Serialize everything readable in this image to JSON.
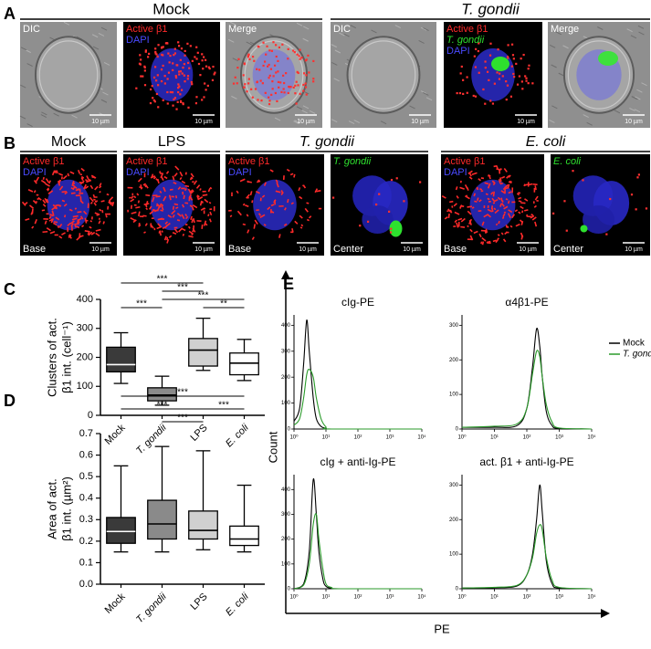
{
  "panel_a": {
    "letter": "A",
    "headers": [
      {
        "text": "Mock",
        "italic": false
      },
      {
        "text": "T. gondii",
        "italic": true
      }
    ],
    "images": [
      {
        "labels": [
          {
            "text": "DIC",
            "color": "#ffffff",
            "italic": false
          }
        ],
        "scale": "10 µm"
      },
      {
        "labels": [
          {
            "text": "Active β1",
            "color": "#ff2a2a",
            "italic": false
          },
          {
            "text": "DAPI",
            "color": "#4a4aff",
            "italic": false
          }
        ],
        "scale": "10 µm"
      },
      {
        "labels": [
          {
            "text": "Merge",
            "color": "#ffffff",
            "italic": false
          }
        ],
        "scale": "10 µm"
      },
      {
        "labels": [
          {
            "text": "DIC",
            "color": "#ffffff",
            "italic": false
          }
        ],
        "scale": "10 µm"
      },
      {
        "labels": [
          {
            "text": "Active β1",
            "color": "#ff2a2a",
            "italic": false
          },
          {
            "text": "T. gondii",
            "color": "#2ee02e",
            "italic": true
          },
          {
            "text": "DAPI",
            "color": "#4a4aff",
            "italic": false
          }
        ],
        "scale": "10 µm"
      },
      {
        "labels": [
          {
            "text": "Merge",
            "color": "#ffffff",
            "italic": false
          }
        ],
        "scale": "10 µm"
      }
    ]
  },
  "panel_b": {
    "letter": "B",
    "headers": [
      {
        "text": "Mock",
        "italic": false
      },
      {
        "text": "LPS",
        "italic": false
      },
      {
        "text": "T. gondii",
        "italic": true
      },
      {
        "text": "E. coli",
        "italic": true
      }
    ],
    "images": [
      {
        "labels": [
          {
            "text": "Active β1",
            "color": "#ff2a2a",
            "italic": false
          },
          {
            "text": "DAPI",
            "color": "#4a4aff",
            "italic": false
          }
        ],
        "scale": "10 µm",
        "corner": "Base"
      },
      {
        "labels": [
          {
            "text": "Active β1",
            "color": "#ff2a2a",
            "italic": false
          },
          {
            "text": "DAPI",
            "color": "#4a4aff",
            "italic": false
          }
        ],
        "scale": "10 µm"
      },
      {
        "labels": [
          {
            "text": "Active β1",
            "color": "#ff2a2a",
            "italic": false
          },
          {
            "text": "DAPI",
            "color": "#4a4aff",
            "italic": false
          }
        ],
        "scale": "10 µm",
        "corner": "Base"
      },
      {
        "labels": [
          {
            "text": "T. gondii",
            "color": "#2ee02e",
            "italic": true
          }
        ],
        "scale": "10 µm",
        "corner": "Center"
      },
      {
        "labels": [
          {
            "text": "Active β1",
            "color": "#ff2a2a",
            "italic": false
          },
          {
            "text": "DAPI",
            "color": "#4a4aff",
            "italic": false
          }
        ],
        "scale": "10 µm",
        "corner": "Base"
      },
      {
        "labels": [
          {
            "text": "E. coli",
            "color": "#2ee02e",
            "italic": true
          }
        ],
        "scale": "10 µm",
        "corner": "Center"
      }
    ]
  },
  "chart_data": [
    {
      "type": "box",
      "letter": "C",
      "ylabel": [
        "Clusters of act.",
        "β1 int. (cell⁻¹)"
      ],
      "categories": [
        "Mock",
        "T. gondii",
        "LPS",
        "E. coli"
      ],
      "italic": [
        false,
        true,
        false,
        true
      ],
      "boxes": [
        {
          "min": 110,
          "q1": 150,
          "median": 175,
          "q3": 235,
          "max": 285,
          "color": "#3a3a3a"
        },
        {
          "min": 35,
          "q1": 50,
          "median": 70,
          "q3": 95,
          "max": 135,
          "color": "#8a8a8a"
        },
        {
          "min": 155,
          "q1": 170,
          "median": 225,
          "q3": 265,
          "max": 335,
          "color": "#d0d0d0"
        },
        {
          "min": 120,
          "q1": 140,
          "median": 180,
          "q3": 215,
          "max": 262,
          "color": "#ffffff"
        }
      ],
      "ylim": [
        0,
        400
      ],
      "yticks": [
        0,
        100,
        200,
        300,
        400
      ],
      "significance": [
        "***",
        "***",
        "***",
        "***",
        "**"
      ]
    },
    {
      "type": "box",
      "letter": "D",
      "ylabel": [
        "Area of act.",
        "β1 int. (µm²)"
      ],
      "categories": [
        "Mock",
        "T. gondii",
        "LPS",
        "E. coli"
      ],
      "italic": [
        false,
        true,
        false,
        true
      ],
      "boxes": [
        {
          "min": 0.15,
          "q1": 0.19,
          "median": 0.245,
          "q3": 0.31,
          "max": 0.55,
          "color": "#3a3a3a"
        },
        {
          "min": 0.15,
          "q1": 0.21,
          "median": 0.28,
          "q3": 0.39,
          "max": 0.64,
          "color": "#8a8a8a"
        },
        {
          "min": 0.16,
          "q1": 0.21,
          "median": 0.25,
          "q3": 0.34,
          "max": 0.62,
          "color": "#d0d0d0"
        },
        {
          "min": 0.15,
          "q1": 0.18,
          "median": 0.21,
          "q3": 0.27,
          "max": 0.46,
          "color": "#ffffff"
        }
      ],
      "ylim": [
        0,
        0.7
      ],
      "yticks": [
        {
          "value": 0,
          "label": "0.0"
        },
        0.1,
        0.2,
        0.3,
        0.4,
        0.5,
        0.6,
        0.7
      ],
      "significance": [
        "***",
        "***",
        "***",
        "***"
      ]
    },
    {
      "type": "histograms",
      "letter": "E",
      "xlabel": "PE",
      "ylabel": "Count",
      "xscale": "log",
      "xlim": [
        1,
        10000
      ],
      "xticks": [
        {
          "value": 1,
          "label": "10⁰"
        },
        {
          "value": 10,
          "label": "10¹"
        },
        {
          "value": 100,
          "label": "10²"
        },
        {
          "value": 1000,
          "label": "10³"
        },
        {
          "value": 10000,
          "label": "10⁴"
        }
      ],
      "series": [
        {
          "name": "Mock",
          "color": "#000000",
          "italic": false
        },
        {
          "name": "T. gondii",
          "color": "#2a9a2a",
          "italic": true
        }
      ],
      "panels": [
        {
          "title": "cIg-PE",
          "ylim": [
            0,
            440
          ],
          "yticks": [
            0,
            100,
            200,
            300,
            400
          ],
          "x": [
            1,
            1.5,
            2,
            2.5,
            3,
            4,
            5,
            7,
            10,
            15,
            10000
          ],
          "values": [
            [
              30,
              80,
              250,
              420,
              300,
              120,
              40,
              10,
              3,
              0,
              0
            ],
            [
              15,
              40,
              120,
              210,
              230,
              200,
              120,
              40,
              8,
              0,
              0
            ]
          ]
        },
        {
          "title": "α4β1-PE",
          "ylim": [
            0,
            330
          ],
          "yticks": [
            0,
            100,
            200,
            300
          ],
          "x": [
            1,
            10,
            50,
            100,
            150,
            200,
            250,
            300,
            400,
            600,
            1000,
            10000
          ],
          "values": [
            [
              5,
              5,
              10,
              60,
              180,
              290,
              240,
              150,
              50,
              10,
              2,
              0
            ],
            [
              5,
              8,
              15,
              60,
              160,
              225,
              210,
              150,
              70,
              20,
              3,
              0
            ]
          ]
        },
        {
          "title": "cIg + anti-Ig-PE",
          "ylim": [
            0,
            460
          ],
          "yticks": [
            0,
            100,
            200,
            300,
            400
          ],
          "x": [
            1,
            2,
            3,
            4,
            5,
            6,
            8,
            10,
            15,
            30,
            10000
          ],
          "values": [
            [
              0,
              20,
              150,
              440,
              300,
              150,
              40,
              10,
              2,
              0,
              0
            ],
            [
              0,
              15,
              100,
              260,
              300,
              200,
              80,
              20,
              5,
              0,
              0
            ]
          ]
        },
        {
          "title": "act. β1 + anti-Ig-PE",
          "ylim": [
            0,
            330
          ],
          "yticks": [
            0,
            100,
            200,
            300
          ],
          "x": [
            1,
            10,
            50,
            100,
            150,
            200,
            250,
            300,
            400,
            600,
            1000,
            10000
          ],
          "values": [
            [
              2,
              3,
              8,
              40,
              100,
              200,
              300,
              220,
              80,
              15,
              2,
              0
            ],
            [
              2,
              4,
              10,
              40,
              90,
              160,
              185,
              170,
              90,
              25,
              4,
              0
            ]
          ]
        }
      ]
    }
  ]
}
